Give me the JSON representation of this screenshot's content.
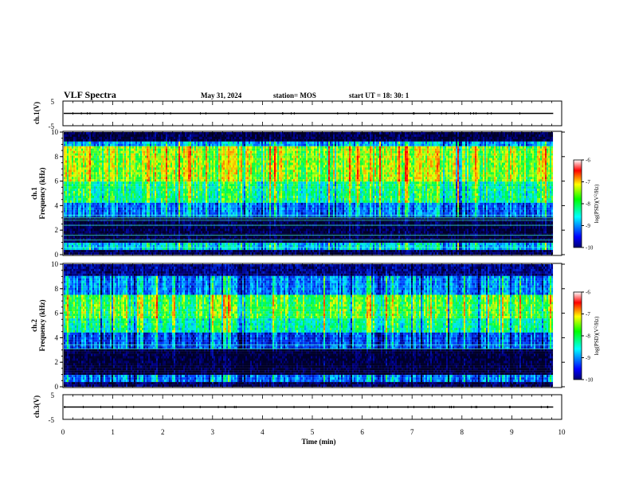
{
  "header": {
    "title": "VLF Spectra",
    "date": "May 31, 2024",
    "station": "station= MOS",
    "start": "start  UT  =   18: 30: 1"
  },
  "chart_data": [
    {
      "type": "line",
      "panel": "ch1-waveform",
      "ylabel": "ch.1(V)",
      "ylim": [
        -5,
        5
      ],
      "yticks": [
        "5",
        "-5"
      ],
      "xlim": [
        0,
        10
      ],
      "trace_level": 0,
      "color": "#000000"
    },
    {
      "type": "heatmap",
      "panel": "ch1-spectrogram",
      "ylabel": "ch.1\nFrequency  (kHz)",
      "ylim": [
        0,
        10
      ],
      "yticks": [
        0,
        2,
        4,
        6,
        8,
        10
      ],
      "xlim": [
        0,
        10
      ],
      "data_x_end": 9.83,
      "colorbar": {
        "label": "log(PSD)(V²/Hz)",
        "range": [
          -10,
          -6
        ],
        "ticks": [
          "-6",
          "-7",
          "-8",
          "-9",
          "-10"
        ]
      },
      "bands": [
        {
          "from": 0.0,
          "to": 0.3,
          "level": -9.8
        },
        {
          "from": 0.3,
          "to": 1.0,
          "level": -8.4
        },
        {
          "from": 1.0,
          "to": 3.0,
          "level": -9.9
        },
        {
          "from": 3.0,
          "to": 4.2,
          "level": -8.8
        },
        {
          "from": 4.2,
          "to": 6.0,
          "level": -7.9
        },
        {
          "from": 6.0,
          "to": 8.8,
          "level": -7.3
        },
        {
          "from": 8.8,
          "to": 9.3,
          "level": -8.6
        },
        {
          "from": 9.3,
          "to": 10.0,
          "level": -9.9
        }
      ],
      "tones_khz": [
        0.6,
        1.2,
        1.6,
        2.4,
        2.8,
        3.0,
        3.2
      ]
    },
    {
      "type": "heatmap",
      "panel": "ch2-spectrogram",
      "ylabel": "ch.2\nFrequency  (kHz)",
      "ylim": [
        0,
        10
      ],
      "yticks": [
        0,
        2,
        4,
        6,
        8,
        10
      ],
      "xlim": [
        0,
        10
      ],
      "data_x_end": 9.83,
      "colorbar": {
        "label": "log(PSD)(V²/Hz)",
        "range": [
          -10,
          -6
        ],
        "ticks": [
          "-6",
          "-7",
          "-8",
          "-9",
          "-10"
        ]
      },
      "bands": [
        {
          "from": 0.0,
          "to": 0.3,
          "level": -9.8
        },
        {
          "from": 0.3,
          "to": 1.0,
          "level": -8.8
        },
        {
          "from": 1.0,
          "to": 3.0,
          "level": -9.95
        },
        {
          "from": 3.0,
          "to": 4.5,
          "level": -9.0
        },
        {
          "from": 4.5,
          "to": 5.5,
          "level": -8.0
        },
        {
          "from": 5.5,
          "to": 7.5,
          "level": -7.6
        },
        {
          "from": 7.5,
          "to": 9.0,
          "level": -8.7
        },
        {
          "from": 9.0,
          "to": 10.0,
          "level": -9.6
        }
      ],
      "tones_khz": [
        3.1,
        3.4
      ]
    },
    {
      "type": "line",
      "panel": "ch3-waveform",
      "ylabel": "ch.3(V)",
      "ylim": [
        -5,
        5
      ],
      "yticks": [
        "5",
        "-5"
      ],
      "xlim": [
        0,
        10
      ],
      "trace_level": 0,
      "color": "#000000"
    }
  ],
  "xaxis": {
    "label": "Time  (min)",
    "ticks": [
      0,
      1,
      2,
      3,
      4,
      5,
      6,
      7,
      8,
      9,
      10
    ]
  }
}
